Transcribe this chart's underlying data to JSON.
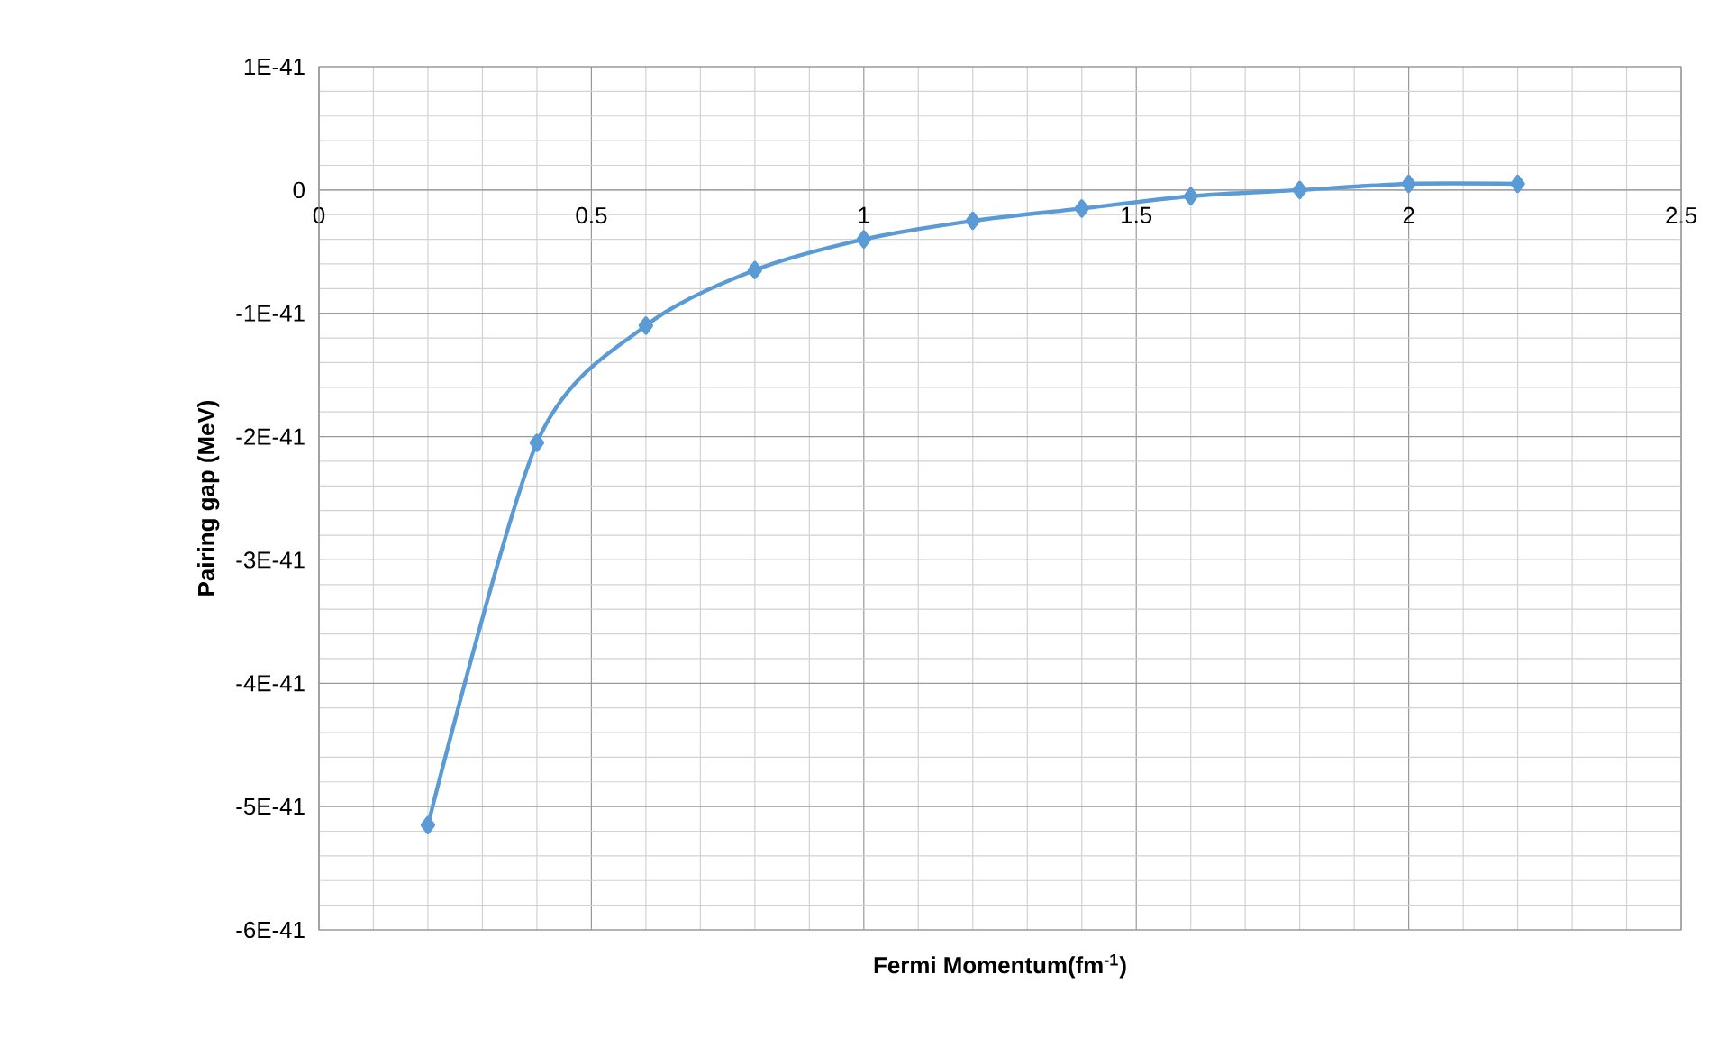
{
  "chart_data": {
    "type": "line",
    "xlabel": "Fermi Momentum(fm$^{-1}$)",
    "ylabel": "Pairing gap (MeV)",
    "x": [
      0.2,
      0.4,
      0.6,
      0.8,
      1.0,
      1.2,
      1.4,
      1.6,
      1.8,
      2.0,
      2.2
    ],
    "series": [
      {
        "color": "#5b9bd5",
        "values": [
          -5.15e-41,
          -2.05e-41,
          -1.1e-41,
          -6.5e-42,
          -4e-42,
          -2.5e-42,
          -1.5e-42,
          -5e-43,
          0.0,
          5e-43,
          5e-43
        ]
      }
    ],
    "xlim": [
      0,
      2.5
    ],
    "xticks": [
      0,
      0.5,
      1,
      1.5,
      2,
      2.5
    ],
    "ylim": [
      -6e-41,
      1e-41
    ],
    "yticks": [
      {
        "value": -6e-41,
        "label": "-6E-41"
      },
      {
        "value": -5e-41,
        "label": "-5E-41"
      },
      {
        "value": -4e-41,
        "label": "-4E-41"
      },
      {
        "value": -3e-41,
        "label": "-3E-41"
      },
      {
        "value": -2e-41,
        "label": "-2E-41"
      },
      {
        "value": -1e-41,
        "label": "-1E-41"
      },
      0,
      {
        "value": 1e-41,
        "label": "1E-41"
      }
    ],
    "grid": true,
    "marker": "diamond",
    "line_style": "solid"
  }
}
